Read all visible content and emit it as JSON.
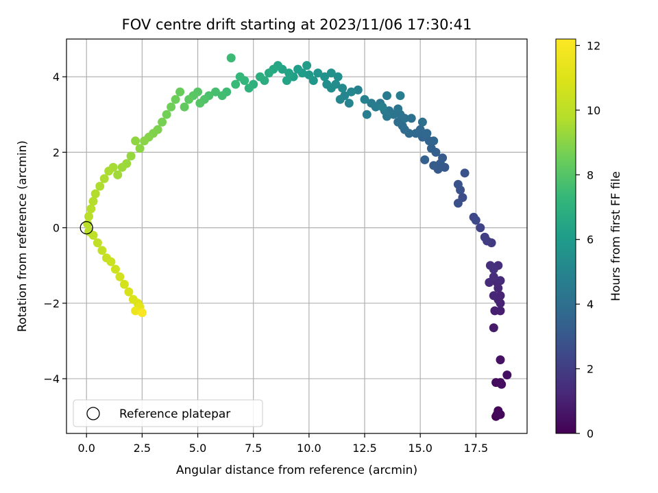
{
  "chart_data": {
    "type": "scatter",
    "title": "FOV centre drift starting at 2023/11/06 17:30:41",
    "xlabel": "Angular distance from reference (arcmin)",
    "ylabel": "Rotation from reference (arcmin)",
    "xlim": [
      -0.9,
      19.8
    ],
    "ylim": [
      -5.45,
      5.0
    ],
    "xticks": [
      0.0,
      2.5,
      5.0,
      7.5,
      10.0,
      12.5,
      15.0,
      17.5
    ],
    "xtick_labels": [
      "0.0",
      "2.5",
      "5.0",
      "7.5",
      "10.0",
      "12.5",
      "15.0",
      "17.5"
    ],
    "yticks": [
      -4,
      -2,
      0,
      2,
      4
    ],
    "ytick_labels": [
      "−4",
      "−2",
      "0",
      "2",
      "4"
    ],
    "grid": true,
    "colormap": "viridis",
    "colorbar": {
      "label": "Hours from first FF file",
      "range": [
        0,
        12.2
      ],
      "ticks": [
        0,
        2,
        4,
        6,
        8,
        10,
        12
      ],
      "tick_labels": [
        "0",
        "2",
        "4",
        "6",
        "8",
        "10",
        "12"
      ]
    },
    "reference_point": {
      "x": 0.0,
      "y": 0.0,
      "label": "Reference platepar"
    },
    "legend": {
      "position": "lower-left",
      "entries": [
        "Reference platepar"
      ]
    },
    "series": [
      {
        "values": [
          [
            18.4,
            -5.0,
            0.0
          ],
          [
            18.5,
            -4.9,
            0.1
          ],
          [
            18.6,
            -4.95,
            0.15
          ],
          [
            18.5,
            -4.85,
            0.2
          ],
          [
            18.45,
            -4.95,
            0.25
          ],
          [
            18.6,
            -4.1,
            0.3
          ],
          [
            18.4,
            -4.1,
            0.35
          ],
          [
            18.65,
            -4.15,
            0.4
          ],
          [
            18.9,
            -3.9,
            0.45
          ],
          [
            18.6,
            -3.5,
            0.5
          ],
          [
            18.3,
            -2.65,
            0.8
          ],
          [
            18.6,
            -2.2,
            0.9
          ],
          [
            18.35,
            -2.2,
            0.95
          ],
          [
            18.6,
            -2.0,
            1.0
          ],
          [
            18.5,
            -1.9,
            1.05
          ],
          [
            18.6,
            -1.8,
            1.1
          ],
          [
            18.3,
            -1.8,
            1.15
          ],
          [
            18.5,
            -1.6,
            1.2
          ],
          [
            18.45,
            -1.45,
            1.25
          ],
          [
            18.6,
            -1.4,
            1.3
          ],
          [
            18.1,
            -1.45,
            1.35
          ],
          [
            18.3,
            -1.3,
            1.4
          ],
          [
            18.5,
            -1.0,
            1.45
          ],
          [
            18.15,
            -1.0,
            1.5
          ],
          [
            18.3,
            -1.1,
            1.55
          ],
          [
            18.2,
            -0.4,
            1.9
          ],
          [
            18.0,
            -0.35,
            2.0
          ],
          [
            17.9,
            -0.25,
            2.05
          ],
          [
            17.7,
            0.0,
            2.2
          ],
          [
            17.4,
            0.28,
            2.4
          ],
          [
            17.5,
            0.2,
            2.45
          ],
          [
            16.9,
            0.8,
            2.6
          ],
          [
            16.7,
            0.65,
            2.7
          ],
          [
            16.8,
            1.0,
            2.75
          ],
          [
            16.7,
            1.15,
            2.8
          ],
          [
            17.0,
            1.45,
            2.85
          ],
          [
            16.1,
            1.6,
            3.0
          ],
          [
            15.8,
            1.55,
            3.05
          ],
          [
            15.9,
            1.7,
            3.1
          ],
          [
            16.0,
            1.85,
            3.15
          ],
          [
            15.6,
            1.65,
            3.2
          ],
          [
            15.7,
            2.0,
            3.3
          ],
          [
            15.5,
            2.1,
            3.35
          ],
          [
            15.2,
            1.8,
            3.4
          ],
          [
            15.4,
            2.3,
            3.5
          ],
          [
            15.6,
            2.3,
            3.55
          ],
          [
            15.1,
            2.4,
            3.6
          ],
          [
            15.3,
            2.5,
            3.65
          ],
          [
            15.0,
            2.6,
            3.7
          ],
          [
            14.8,
            2.5,
            3.75
          ],
          [
            14.5,
            2.5,
            3.8
          ],
          [
            14.3,
            2.6,
            3.85
          ],
          [
            14.2,
            2.7,
            3.9
          ],
          [
            14.0,
            2.8,
            3.95
          ],
          [
            15.1,
            2.8,
            4.0
          ],
          [
            14.6,
            2.9,
            4.05
          ],
          [
            14.3,
            2.9,
            4.1
          ],
          [
            14.1,
            3.0,
            4.15
          ],
          [
            13.8,
            3.0,
            4.2
          ],
          [
            13.6,
            3.1,
            4.25
          ],
          [
            14.0,
            3.15,
            4.3
          ],
          [
            13.5,
            2.95,
            4.35
          ],
          [
            13.4,
            3.1,
            4.4
          ],
          [
            13.2,
            3.3,
            4.45
          ],
          [
            13.5,
            3.5,
            4.5
          ],
          [
            13.0,
            3.2,
            4.55
          ],
          [
            12.8,
            3.3,
            4.6
          ],
          [
            12.6,
            3.0,
            4.65
          ],
          [
            14.1,
            3.5,
            4.7
          ],
          [
            13.3,
            3.2,
            4.75
          ],
          [
            12.5,
            3.4,
            4.8
          ],
          [
            12.2,
            3.65,
            4.9
          ],
          [
            11.8,
            3.3,
            4.95
          ],
          [
            11.6,
            3.5,
            5.0
          ],
          [
            11.4,
            3.4,
            5.05
          ],
          [
            11.9,
            3.6,
            5.1
          ],
          [
            11.5,
            3.7,
            5.2
          ],
          [
            11.2,
            3.8,
            5.3
          ],
          [
            11.0,
            3.7,
            5.35
          ],
          [
            10.8,
            3.8,
            5.4
          ],
          [
            11.3,
            4.0,
            5.45
          ],
          [
            11.0,
            4.1,
            5.5
          ],
          [
            10.7,
            4.0,
            5.6
          ],
          [
            10.4,
            4.1,
            5.7
          ],
          [
            10.2,
            3.9,
            5.8
          ],
          [
            10.0,
            4.05,
            5.9
          ],
          [
            9.9,
            4.3,
            6.0
          ],
          [
            9.7,
            4.1,
            6.05
          ],
          [
            9.5,
            4.2,
            6.1
          ],
          [
            9.3,
            4.0,
            6.2
          ],
          [
            9.1,
            4.1,
            6.3
          ],
          [
            9.0,
            3.9,
            6.35
          ],
          [
            8.8,
            4.2,
            6.4
          ],
          [
            8.6,
            4.3,
            6.5
          ],
          [
            8.4,
            4.2,
            6.6
          ],
          [
            8.2,
            4.1,
            6.7
          ],
          [
            8.0,
            3.9,
            6.8
          ],
          [
            7.8,
            4.0,
            6.9
          ],
          [
            7.5,
            3.8,
            7.0
          ],
          [
            7.3,
            3.7,
            7.1
          ],
          [
            7.1,
            3.9,
            7.2
          ],
          [
            6.9,
            4.0,
            7.3
          ],
          [
            6.7,
            3.8,
            7.4
          ],
          [
            6.5,
            4.5,
            7.45
          ],
          [
            6.3,
            3.6,
            7.5
          ],
          [
            6.1,
            3.5,
            7.6
          ],
          [
            5.8,
            3.6,
            7.7
          ],
          [
            5.5,
            3.5,
            7.8
          ],
          [
            5.3,
            3.4,
            7.9
          ],
          [
            5.1,
            3.3,
            8.0
          ],
          [
            5.0,
            3.6,
            8.05
          ],
          [
            4.8,
            3.5,
            8.1
          ],
          [
            4.6,
            3.4,
            8.2
          ],
          [
            4.4,
            3.2,
            8.3
          ],
          [
            4.2,
            3.6,
            8.4
          ],
          [
            4.0,
            3.4,
            8.5
          ],
          [
            3.8,
            3.2,
            8.55
          ],
          [
            3.6,
            3.0,
            8.6
          ],
          [
            3.4,
            2.8,
            8.7
          ],
          [
            3.2,
            2.6,
            8.8
          ],
          [
            3.0,
            2.5,
            8.85
          ],
          [
            2.8,
            2.4,
            8.9
          ],
          [
            2.6,
            2.3,
            9.0
          ],
          [
            2.4,
            2.1,
            9.05
          ],
          [
            2.2,
            2.3,
            9.1
          ],
          [
            2.0,
            1.9,
            9.2
          ],
          [
            1.8,
            1.7,
            9.3
          ],
          [
            1.6,
            1.6,
            9.35
          ],
          [
            1.4,
            1.4,
            9.4
          ],
          [
            1.2,
            1.6,
            9.5
          ],
          [
            1.0,
            1.5,
            9.55
          ],
          [
            0.8,
            1.3,
            9.6
          ],
          [
            0.6,
            1.1,
            9.65
          ],
          [
            0.4,
            0.9,
            9.7
          ],
          [
            0.3,
            0.7,
            9.75
          ],
          [
            0.2,
            0.5,
            9.8
          ],
          [
            0.1,
            0.3,
            9.85
          ],
          [
            0.05,
            0.1,
            9.9
          ],
          [
            0.1,
            -0.1,
            9.95
          ],
          [
            0.3,
            -0.2,
            10.0
          ],
          [
            0.5,
            -0.4,
            10.1
          ],
          [
            0.7,
            -0.6,
            10.2
          ],
          [
            0.9,
            -0.8,
            10.3
          ],
          [
            1.1,
            -0.9,
            10.4
          ],
          [
            1.3,
            -1.1,
            10.5
          ],
          [
            1.5,
            -1.3,
            10.6
          ],
          [
            1.7,
            -1.5,
            10.7
          ],
          [
            1.9,
            -1.7,
            10.8
          ],
          [
            2.1,
            -1.9,
            10.9
          ],
          [
            2.3,
            -2.0,
            11.0
          ],
          [
            2.4,
            -2.1,
            11.2
          ],
          [
            2.2,
            -2.2,
            11.5
          ],
          [
            2.5,
            -2.25,
            12.0
          ]
        ]
      }
    ]
  }
}
